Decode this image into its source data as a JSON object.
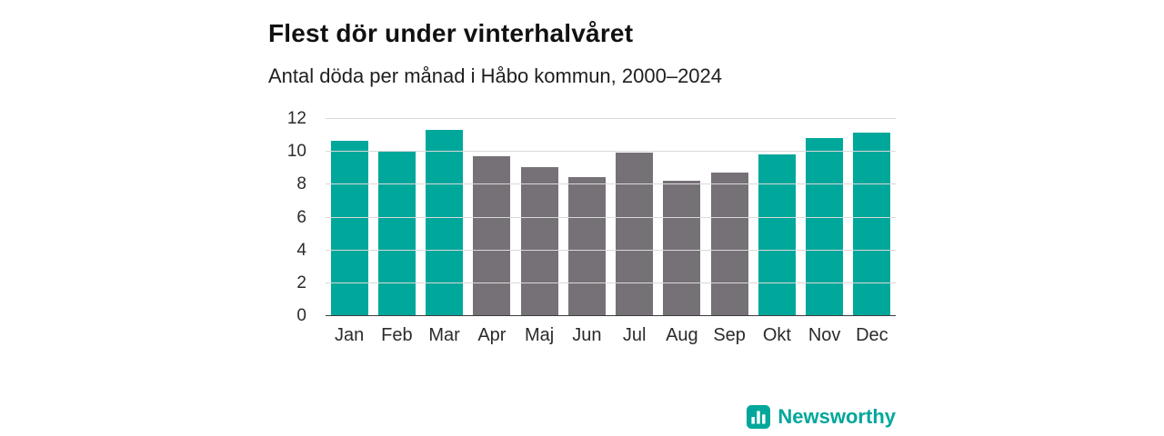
{
  "header": {
    "title": "Flest dör under vinterhalvåret",
    "subtitle": "Antal döda per månad i Håbo kommun, 2000–2024"
  },
  "chart_data": {
    "type": "bar",
    "title": "Flest dör under vinterhalvåret",
    "subtitle": "Antal döda per månad i Håbo kommun, 2000–2024",
    "categories": [
      "Jan",
      "Feb",
      "Mar",
      "Apr",
      "Maj",
      "Jun",
      "Jul",
      "Aug",
      "Sep",
      "Okt",
      "Nov",
      "Dec"
    ],
    "values": [
      10.6,
      10.0,
      11.3,
      9.7,
      9.0,
      8.4,
      9.9,
      8.2,
      8.7,
      9.8,
      10.8,
      11.1
    ],
    "bar_colors": [
      "teal",
      "teal",
      "teal",
      "gray",
      "gray",
      "gray",
      "gray",
      "gray",
      "gray",
      "teal",
      "teal",
      "teal"
    ],
    "colors": {
      "teal": "#00a79b",
      "gray": "#767077"
    },
    "xlabel": "",
    "ylabel": "",
    "ylim": [
      0,
      12
    ],
    "yticks": [
      0,
      2,
      4,
      6,
      8,
      10,
      12
    ],
    "grid": true,
    "legend": "none"
  },
  "footer": {
    "brand": "Newsworthy",
    "brand_color": "#00a79b",
    "brand_icon": "bar-chart-icon"
  }
}
